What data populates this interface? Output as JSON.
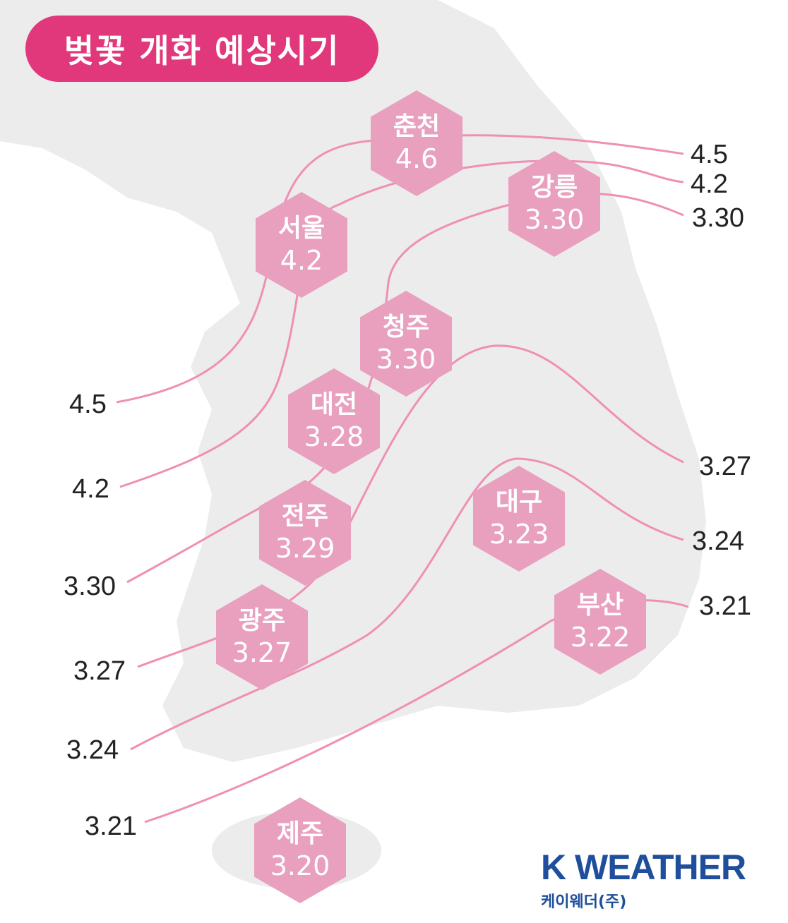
{
  "title": "벚꽃 개화 예상시기",
  "cities": [
    {
      "name": "춘천",
      "date": "4.6"
    },
    {
      "name": "강릉",
      "date": "3.30"
    },
    {
      "name": "서울",
      "date": "4.2"
    },
    {
      "name": "청주",
      "date": "3.30"
    },
    {
      "name": "대전",
      "date": "3.28"
    },
    {
      "name": "전주",
      "date": "3.29"
    },
    {
      "name": "대구",
      "date": "3.23"
    },
    {
      "name": "부산",
      "date": "3.22"
    },
    {
      "name": "광주",
      "date": "3.27"
    },
    {
      "name": "제주",
      "date": "3.20"
    }
  ],
  "left_values": [
    "4.5",
    "4.2",
    "3.30",
    "3.27",
    "3.24",
    "3.21"
  ],
  "right_values": [
    "4.5",
    "4.2",
    "3.30",
    "3.27",
    "3.24",
    "3.21"
  ],
  "logo": {
    "brand": "K WEATHER",
    "sub": "케이웨더(주)"
  },
  "colors": {
    "accent": "#e0387a",
    "hex_fill": "#e9a0bf",
    "line": "#f08fb5",
    "land": "#ececec",
    "brand": "#1f4f9c"
  }
}
